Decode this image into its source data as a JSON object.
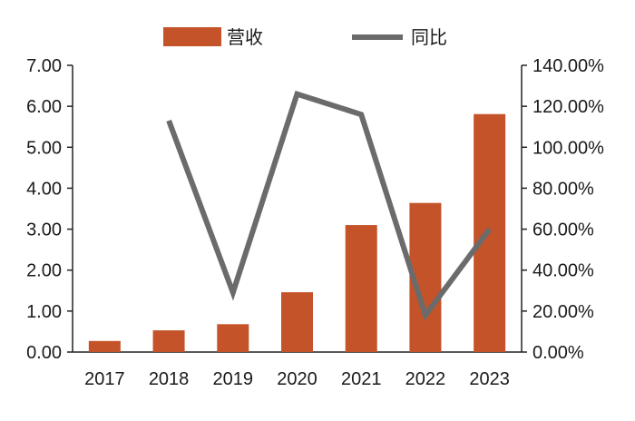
{
  "chart_data": {
    "type": "bar",
    "categories": [
      "2017",
      "2018",
      "2019",
      "2020",
      "2021",
      "2022",
      "2023"
    ],
    "series": [
      {
        "name": "营收",
        "type": "bar",
        "axis": "left",
        "color": "#c5532a",
        "values": [
          0.27,
          0.53,
          0.68,
          1.46,
          3.1,
          3.64,
          5.81
        ]
      },
      {
        "name": "同比",
        "type": "line",
        "axis": "right",
        "color": "#6b6b6b",
        "values": [
          null,
          113.0,
          29.0,
          126.0,
          116.0,
          18.0,
          60.0
        ]
      }
    ],
    "left_axis": {
      "min": 0,
      "max": 7,
      "ticks": [
        "0.00",
        "1.00",
        "2.00",
        "3.00",
        "4.00",
        "5.00",
        "6.00",
        "7.00"
      ]
    },
    "right_axis": {
      "min": 0,
      "max": 140,
      "ticks": [
        "0.00%",
        "20.00%",
        "40.00%",
        "60.00%",
        "80.00%",
        "100.00%",
        "120.00%",
        "140.00%"
      ]
    },
    "grid": false,
    "legend_position": "top"
  }
}
